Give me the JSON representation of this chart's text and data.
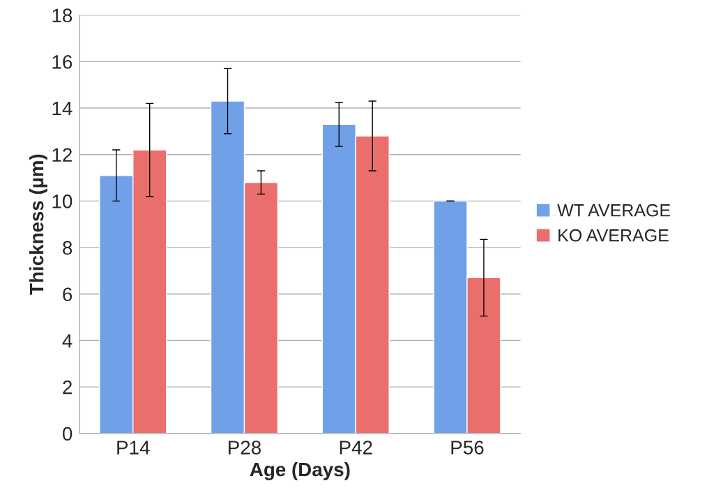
{
  "chart_data": {
    "type": "bar",
    "xlabel": "Age (Days)",
    "ylabel": "Thickness (µm)",
    "categories": [
      "P14",
      "P28",
      "P42",
      "P56"
    ],
    "series": [
      {
        "name": "WT AVERAGE",
        "color": "#6fa0e8",
        "values": [
          11.1,
          14.3,
          13.3,
          10.0
        ],
        "errors": [
          1.1,
          1.4,
          0.95,
          0
        ]
      },
      {
        "name": "KO AVERAGE",
        "color": "#ea6e6c",
        "values": [
          12.2,
          10.8,
          12.8,
          6.7
        ],
        "errors": [
          2.0,
          0.5,
          1.5,
          1.65
        ]
      }
    ],
    "ylim": [
      0,
      18
    ],
    "yticks": [
      0,
      2,
      4,
      6,
      8,
      10,
      12,
      14,
      16,
      18
    ],
    "grid": "y",
    "legend": "right"
  }
}
